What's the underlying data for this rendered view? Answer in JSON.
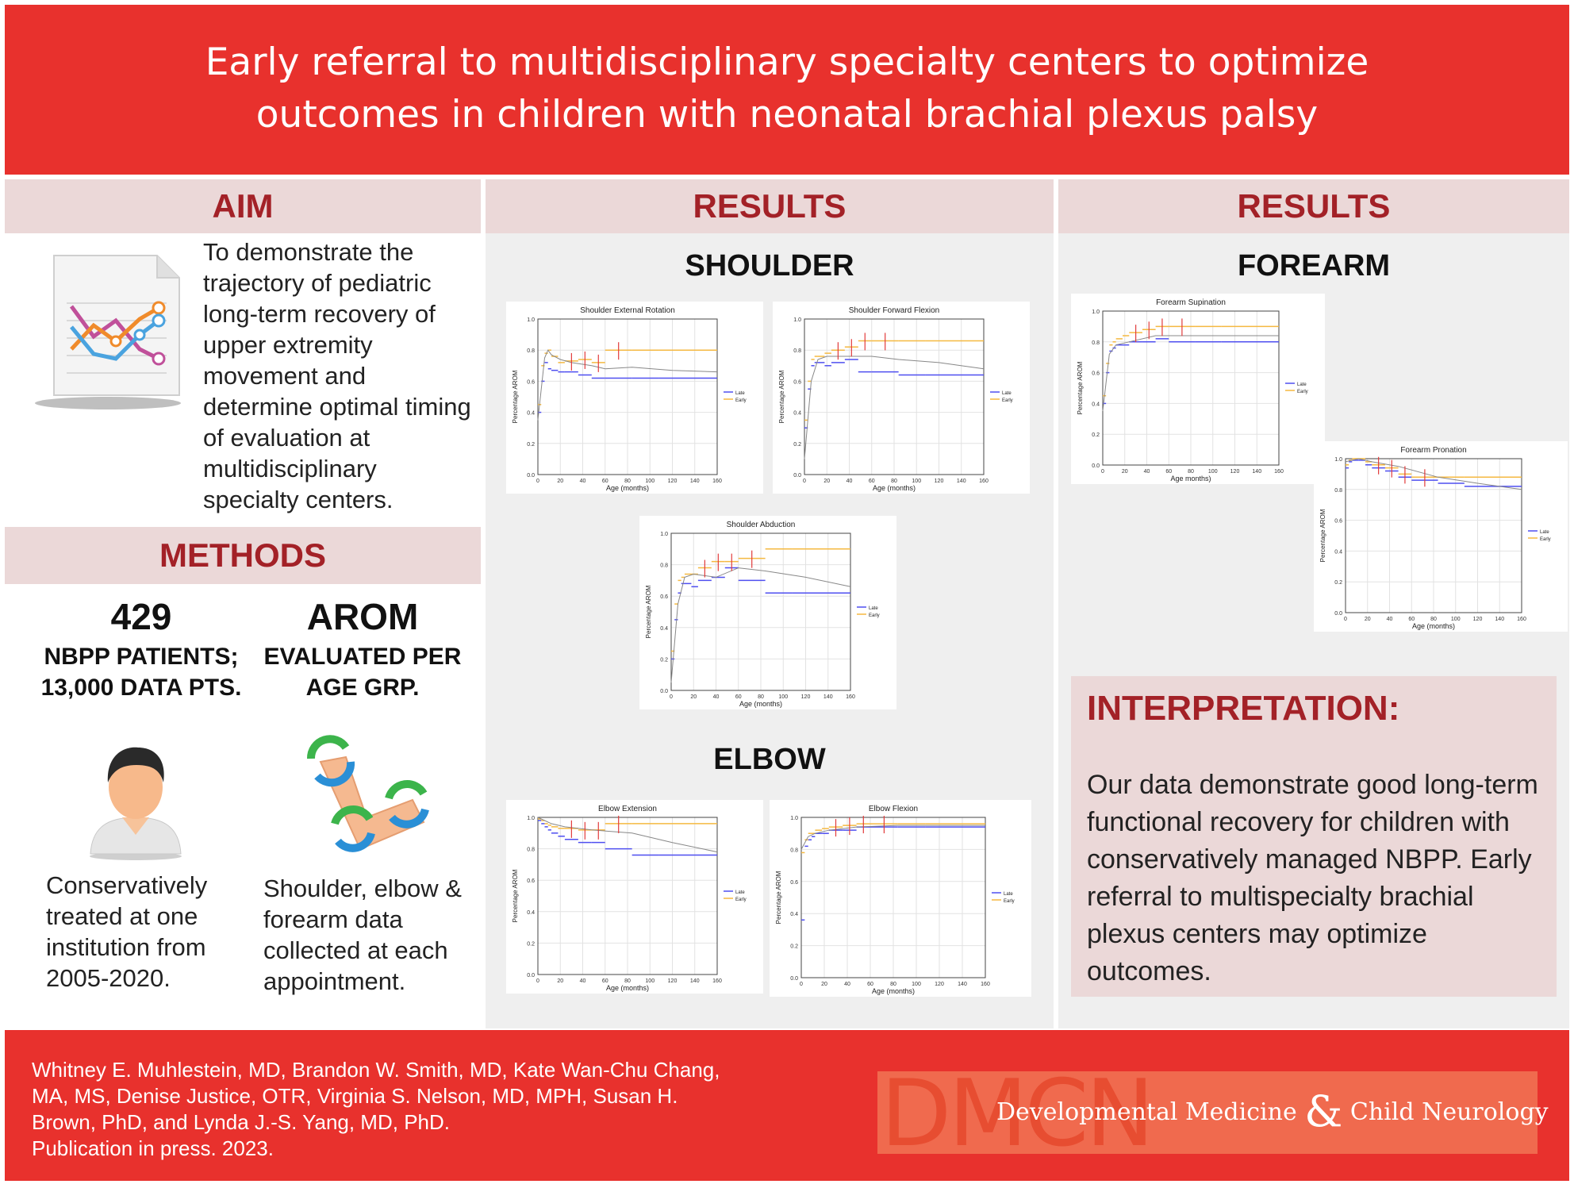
{
  "header": {
    "title_line1": "Early referral to multidisciplinary specialty centers to optimize",
    "title_line2": "outcomes in children with neonatal brachial plexus palsy"
  },
  "aim": {
    "heading": "AIM",
    "text": "To demonstrate the trajectory of pediatric long-term recovery of upper extremity movement and determine optimal timing of evaluation at multidisciplinary specialty centers.",
    "icon": "report-chart-icon"
  },
  "methods": {
    "heading": "METHODS",
    "stat1": {
      "number": "429",
      "label": "NBPP PATIENTS; 13,000 DATA PTS.",
      "icon": "patient-icon",
      "text": "Conservatively treated at one institution from 2005-2020."
    },
    "stat2": {
      "number": "AROM",
      "label": "EVALUATED PER AGE GRP.",
      "icon": "arm-rotation-icon",
      "text": "Shoulder, elbow & forearm data collected at each appointment."
    }
  },
  "results_mid": {
    "heading": "RESULTS",
    "shoulder_heading": "SHOULDER",
    "elbow_heading": "ELBOW"
  },
  "results_right": {
    "heading": "RESULTS",
    "forearm_heading": "FOREARM"
  },
  "interpretation": {
    "heading": "INTERPRETATION:",
    "text": "Our data demonstrate good long-term functional recovery for children with conservatively managed NBPP. Early referral to multispecialty brachial plexus centers may optimize outcomes."
  },
  "footer": {
    "authors": "Whitney E. Muhlestein, MD, Brandon W. Smith, MD, Kate Wan-Chu Chang, MA, MS, Denise Justice, OTR, Virginia S. Nelson, MD, MPH, Susan H. Brown, PhD, and Lynda J.-S. Yang, MD, PhD.",
    "publication": "Publication in press. 2023.",
    "logo_letters": "DMCN",
    "journal_part1": "Developmental Medicine",
    "journal_amp": "&",
    "journal_part2": "Child Neurology"
  },
  "colors": {
    "red": "#e8312d",
    "dark_red": "#a32127",
    "pink": "#ebd8d8",
    "late": "#4f4ff0",
    "early": "#f5b941",
    "err": "#e23b3b"
  },
  "chart_data": [
    {
      "type": "line",
      "title": "Shoulder External Rotation",
      "xlabel": "Age (months)",
      "ylabel": "Percentage AROM",
      "xlim": [
        0,
        160
      ],
      "ylim": [
        0,
        1.0
      ],
      "xticks": [
        "0",
        "20",
        "40",
        "60",
        "80",
        "100",
        "120",
        "140",
        "160"
      ],
      "yticks": [
        "0.0",
        "0.2",
        "0.4",
        "0.6",
        "0.8",
        "1.0"
      ],
      "legend": [
        "Late",
        "Early"
      ],
      "series": [
        {
          "name": "Late",
          "x": [
            3,
            6,
            9,
            12,
            18,
            24,
            36,
            48,
            60,
            84,
            108,
            160
          ],
          "y": [
            0.4,
            0.6,
            0.72,
            0.68,
            0.67,
            0.66,
            0.66,
            0.64,
            0.62,
            0.62,
            0.62,
            0.62
          ]
        },
        {
          "name": "Early",
          "x": [
            3,
            6,
            9,
            12,
            18,
            24,
            36,
            48,
            60,
            84,
            108,
            160
          ],
          "y": [
            0.45,
            0.7,
            0.78,
            0.8,
            0.76,
            0.72,
            0.73,
            0.74,
            0.72,
            0.8,
            0.8,
            0.8
          ]
        },
        {
          "name": "trend",
          "x": [
            0,
            6,
            9,
            12,
            20,
            30,
            48,
            60,
            84,
            120,
            160
          ],
          "y": [
            0.35,
            0.75,
            0.8,
            0.77,
            0.74,
            0.72,
            0.7,
            0.68,
            0.69,
            0.67,
            0.66
          ]
        }
      ]
    },
    {
      "type": "line",
      "title": "Shoulder Forward Flexion",
      "xlabel": "Age (months)",
      "ylabel": "Percentage AROM",
      "xlim": [
        0,
        160
      ],
      "ylim": [
        0,
        1.0
      ],
      "xticks": [
        "0",
        "20",
        "40",
        "60",
        "80",
        "100",
        "120",
        "140",
        "160"
      ],
      "yticks": [
        "0.0",
        "0.2",
        "0.4",
        "0.6",
        "0.8",
        "1.0"
      ],
      "legend": [
        "Late",
        "Early"
      ],
      "series": [
        {
          "name": "Late",
          "x": [
            3,
            6,
            9,
            12,
            18,
            24,
            36,
            48,
            60,
            84,
            108,
            160
          ],
          "y": [
            0.3,
            0.55,
            0.7,
            0.72,
            0.72,
            0.7,
            0.72,
            0.74,
            0.66,
            0.66,
            0.64,
            0.64
          ]
        },
        {
          "name": "Early",
          "x": [
            3,
            6,
            9,
            12,
            18,
            24,
            36,
            48,
            60,
            84,
            108,
            160
          ],
          "y": [
            0.35,
            0.6,
            0.74,
            0.76,
            0.76,
            0.78,
            0.8,
            0.82,
            0.86,
            0.86,
            0.86,
            0.86
          ]
        },
        {
          "name": "trend",
          "x": [
            0,
            6,
            12,
            20,
            40,
            60,
            84,
            120,
            160
          ],
          "y": [
            0.1,
            0.6,
            0.74,
            0.76,
            0.76,
            0.76,
            0.74,
            0.72,
            0.68
          ]
        }
      ]
    },
    {
      "type": "line",
      "title": "Shoulder Abduction",
      "xlabel": "Age (months)",
      "ylabel": "Percentage AROM",
      "xlim": [
        0,
        160
      ],
      "ylim": [
        0,
        1.0
      ],
      "xticks": [
        "0",
        "20",
        "40",
        "60",
        "80",
        "100",
        "120",
        "140",
        "160"
      ],
      "yticks": [
        "0.0",
        "0.2",
        "0.4",
        "0.6",
        "0.8",
        "1.0"
      ],
      "legend": [
        "Late",
        "Early"
      ],
      "series": [
        {
          "name": "Late",
          "x": [
            3,
            6,
            9,
            12,
            18,
            24,
            36,
            48,
            60,
            84,
            108,
            160
          ],
          "y": [
            0.2,
            0.45,
            0.62,
            0.68,
            0.68,
            0.66,
            0.7,
            0.72,
            0.78,
            0.7,
            0.62,
            0.62
          ]
        },
        {
          "name": "Early",
          "x": [
            3,
            6,
            9,
            12,
            18,
            24,
            36,
            48,
            60,
            84,
            108,
            160
          ],
          "y": [
            0.25,
            0.55,
            0.7,
            0.72,
            0.74,
            0.74,
            0.78,
            0.82,
            0.82,
            0.84,
            0.9,
            0.9
          ]
        },
        {
          "name": "trend",
          "x": [
            0,
            6,
            12,
            20,
            40,
            60,
            84,
            120,
            160
          ],
          "y": [
            0.05,
            0.55,
            0.72,
            0.74,
            0.72,
            0.78,
            0.76,
            0.72,
            0.66
          ]
        }
      ]
    },
    {
      "type": "line",
      "title": "Elbow Extension",
      "xlabel": "Age (months)",
      "ylabel": "Percentage AROM",
      "xlim": [
        0,
        160
      ],
      "ylim": [
        0,
        1.0
      ],
      "xticks": [
        "0",
        "20",
        "40",
        "60",
        "80",
        "100",
        "120",
        "140",
        "160"
      ],
      "yticks": [
        "0.0",
        "0.2",
        "0.4",
        "0.6",
        "0.8",
        "1.0"
      ],
      "legend": [
        "Late",
        "Early"
      ],
      "series": [
        {
          "name": "Late",
          "x": [
            3,
            6,
            9,
            12,
            18,
            24,
            36,
            48,
            60,
            84,
            108,
            160
          ],
          "y": [
            0.98,
            0.96,
            0.94,
            0.92,
            0.9,
            0.88,
            0.86,
            0.84,
            0.84,
            0.8,
            0.76,
            0.76
          ]
        },
        {
          "name": "Early",
          "x": [
            3,
            6,
            9,
            12,
            18,
            24,
            36,
            48,
            60,
            84,
            108,
            160
          ],
          "y": [
            0.99,
            0.98,
            0.96,
            0.95,
            0.94,
            0.93,
            0.93,
            0.92,
            0.92,
            0.96,
            0.96,
            0.96
          ]
        },
        {
          "name": "trend",
          "x": [
            0,
            12,
            24,
            48,
            84,
            120,
            160
          ],
          "y": [
            1.0,
            0.96,
            0.94,
            0.92,
            0.9,
            0.84,
            0.78
          ]
        }
      ]
    },
    {
      "type": "line",
      "title": "Elbow Flexion",
      "xlabel": "Age (months)",
      "ylabel": "Percentage AROM",
      "xlim": [
        0,
        160
      ],
      "ylim": [
        0,
        1.0
      ],
      "xticks": [
        "0",
        "20",
        "40",
        "60",
        "80",
        "100",
        "120",
        "140",
        "160"
      ],
      "yticks": [
        "0.0",
        "0.2",
        "0.4",
        "0.6",
        "0.8",
        "1.0"
      ],
      "legend": [
        "Late",
        "Early"
      ],
      "series": [
        {
          "name": "Late",
          "x": [
            3,
            6,
            9,
            12,
            18,
            24,
            36,
            48,
            60,
            84,
            108,
            160
          ],
          "y": [
            0.36,
            0.82,
            0.86,
            0.88,
            0.9,
            0.9,
            0.92,
            0.92,
            0.94,
            0.94,
            0.94,
            0.94
          ]
        },
        {
          "name": "Early",
          "x": [
            3,
            6,
            9,
            12,
            18,
            24,
            36,
            48,
            60,
            84,
            108,
            160
          ],
          "y": [
            0.78,
            0.86,
            0.9,
            0.9,
            0.92,
            0.93,
            0.94,
            0.95,
            0.96,
            0.96,
            0.96,
            0.96
          ]
        },
        {
          "name": "trend",
          "x": [
            0,
            6,
            12,
            24,
            48,
            84,
            120,
            160
          ],
          "y": [
            0.8,
            0.88,
            0.9,
            0.92,
            0.94,
            0.95,
            0.95,
            0.95
          ]
        }
      ]
    },
    {
      "type": "line",
      "title": "Forearm Supination",
      "xlabel": "Age months)",
      "ylabel": "Percentage AROM",
      "xlim": [
        0,
        160
      ],
      "ylim": [
        0,
        1.0
      ],
      "xticks": [
        "0",
        "20",
        "40",
        "60",
        "80",
        "100",
        "120",
        "140",
        "160"
      ],
      "yticks": [
        "0.0",
        "0.2",
        "0.4",
        "0.6",
        "0.8",
        "1.0"
      ],
      "legend": [
        "Late",
        "Early"
      ],
      "series": [
        {
          "name": "Late",
          "x": [
            3,
            6,
            9,
            12,
            18,
            24,
            36,
            48,
            60,
            84,
            108,
            160
          ],
          "y": [
            0.4,
            0.6,
            0.74,
            0.76,
            0.78,
            0.78,
            0.8,
            0.8,
            0.82,
            0.8,
            0.8,
            0.8
          ]
        },
        {
          "name": "Early",
          "x": [
            3,
            6,
            9,
            12,
            18,
            24,
            36,
            48,
            60,
            84,
            108,
            160
          ],
          "y": [
            0.45,
            0.66,
            0.78,
            0.8,
            0.82,
            0.84,
            0.86,
            0.88,
            0.9,
            0.9,
            0.9,
            0.9
          ]
        },
        {
          "name": "trend",
          "x": [
            0,
            6,
            12,
            24,
            48,
            84,
            120,
            160
          ],
          "y": [
            0.35,
            0.72,
            0.78,
            0.8,
            0.84,
            0.84,
            0.84,
            0.84
          ]
        }
      ]
    },
    {
      "type": "line",
      "title": "Forearm Pronation",
      "xlabel": "Age (months)",
      "ylabel": "Percentage AROM",
      "xlim": [
        0,
        160
      ],
      "ylim": [
        0,
        1.0
      ],
      "xticks": [
        "0",
        "20",
        "40",
        "60",
        "80",
        "100",
        "120",
        "140",
        "160"
      ],
      "yticks": [
        "0.0",
        "0.2",
        "0.4",
        "0.6",
        "0.8",
        "1.0"
      ],
      "legend": [
        "Late",
        "Early"
      ],
      "series": [
        {
          "name": "Late",
          "x": [
            3,
            6,
            9,
            12,
            18,
            24,
            36,
            48,
            60,
            84,
            108,
            160
          ],
          "y": [
            0.94,
            0.98,
            0.99,
            0.99,
            0.99,
            0.96,
            0.94,
            0.92,
            0.88,
            0.86,
            0.84,
            0.82
          ]
        },
        {
          "name": "Early",
          "x": [
            3,
            6,
            9,
            12,
            18,
            24,
            36,
            48,
            60,
            84,
            108,
            160
          ],
          "y": [
            0.96,
            0.99,
            1.0,
            1.0,
            1.0,
            0.98,
            0.96,
            0.94,
            0.9,
            0.88,
            0.88,
            0.88
          ]
        },
        {
          "name": "trend",
          "x": [
            0,
            12,
            24,
            48,
            84,
            120,
            160
          ],
          "y": [
            0.98,
            1.0,
            0.98,
            0.95,
            0.88,
            0.84,
            0.8
          ]
        }
      ]
    }
  ]
}
